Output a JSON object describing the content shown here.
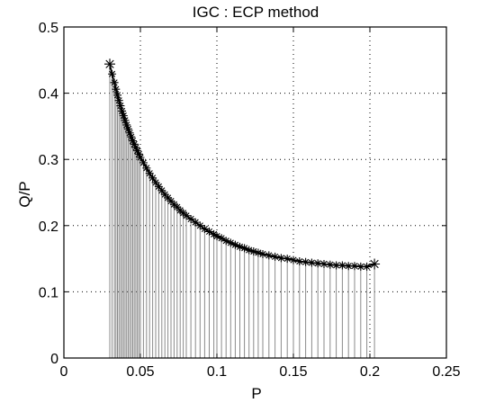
{
  "chart_data": {
    "type": "scatter",
    "title": "IGC : ECP method",
    "xlabel": "P",
    "ylabel": "Q/P",
    "xlim": [
      0,
      0.25
    ],
    "ylim": [
      0,
      0.5
    ],
    "xticks": [
      0,
      0.05,
      0.1,
      0.15,
      0.2,
      0.25
    ],
    "yticks": [
      0,
      0.1,
      0.2,
      0.3,
      0.4,
      0.5
    ],
    "xtick_labels": [
      "0",
      "0.05",
      "0.1",
      "0.15",
      "0.2",
      "0.25"
    ],
    "ytick_labels": [
      "0",
      "0.1",
      "0.2",
      "0.3",
      "0.4",
      "0.5"
    ],
    "grid": true,
    "marker": "asterisk",
    "stem_lines": true,
    "series": [
      {
        "x": [
          0.03,
          0.0315,
          0.033,
          0.034,
          0.035,
          0.036,
          0.037,
          0.038,
          0.039,
          0.04,
          0.041,
          0.042,
          0.043,
          0.044,
          0.045,
          0.046,
          0.047,
          0.048,
          0.049,
          0.05,
          0.052,
          0.054,
          0.056,
          0.058,
          0.06,
          0.062,
          0.064,
          0.066,
          0.068,
          0.07,
          0.072,
          0.074,
          0.076,
          0.078,
          0.08,
          0.083,
          0.086,
          0.089,
          0.092,
          0.095,
          0.098,
          0.1,
          0.103,
          0.106,
          0.109,
          0.112,
          0.115,
          0.118,
          0.121,
          0.124,
          0.127,
          0.13,
          0.134,
          0.138,
          0.142,
          0.146,
          0.15,
          0.154,
          0.158,
          0.162,
          0.166,
          0.17,
          0.174,
          0.178,
          0.182,
          0.186,
          0.19,
          0.194,
          0.198,
          0.203
        ],
        "y": [
          0.444,
          0.429,
          0.416,
          0.406,
          0.397,
          0.389,
          0.381,
          0.373,
          0.366,
          0.359,
          0.352,
          0.346,
          0.34,
          0.334,
          0.328,
          0.323,
          0.318,
          0.313,
          0.308,
          0.303,
          0.295,
          0.287,
          0.279,
          0.272,
          0.265,
          0.259,
          0.253,
          0.247,
          0.242,
          0.237,
          0.232,
          0.228,
          0.223,
          0.219,
          0.215,
          0.21,
          0.205,
          0.2,
          0.195,
          0.191,
          0.187,
          0.184,
          0.181,
          0.177,
          0.174,
          0.171,
          0.168,
          0.166,
          0.163,
          0.161,
          0.159,
          0.157,
          0.155,
          0.153,
          0.151,
          0.15,
          0.148,
          0.146,
          0.145,
          0.144,
          0.143,
          0.142,
          0.141,
          0.14,
          0.14,
          0.139,
          0.139,
          0.138,
          0.138,
          0.142
        ]
      }
    ]
  }
}
